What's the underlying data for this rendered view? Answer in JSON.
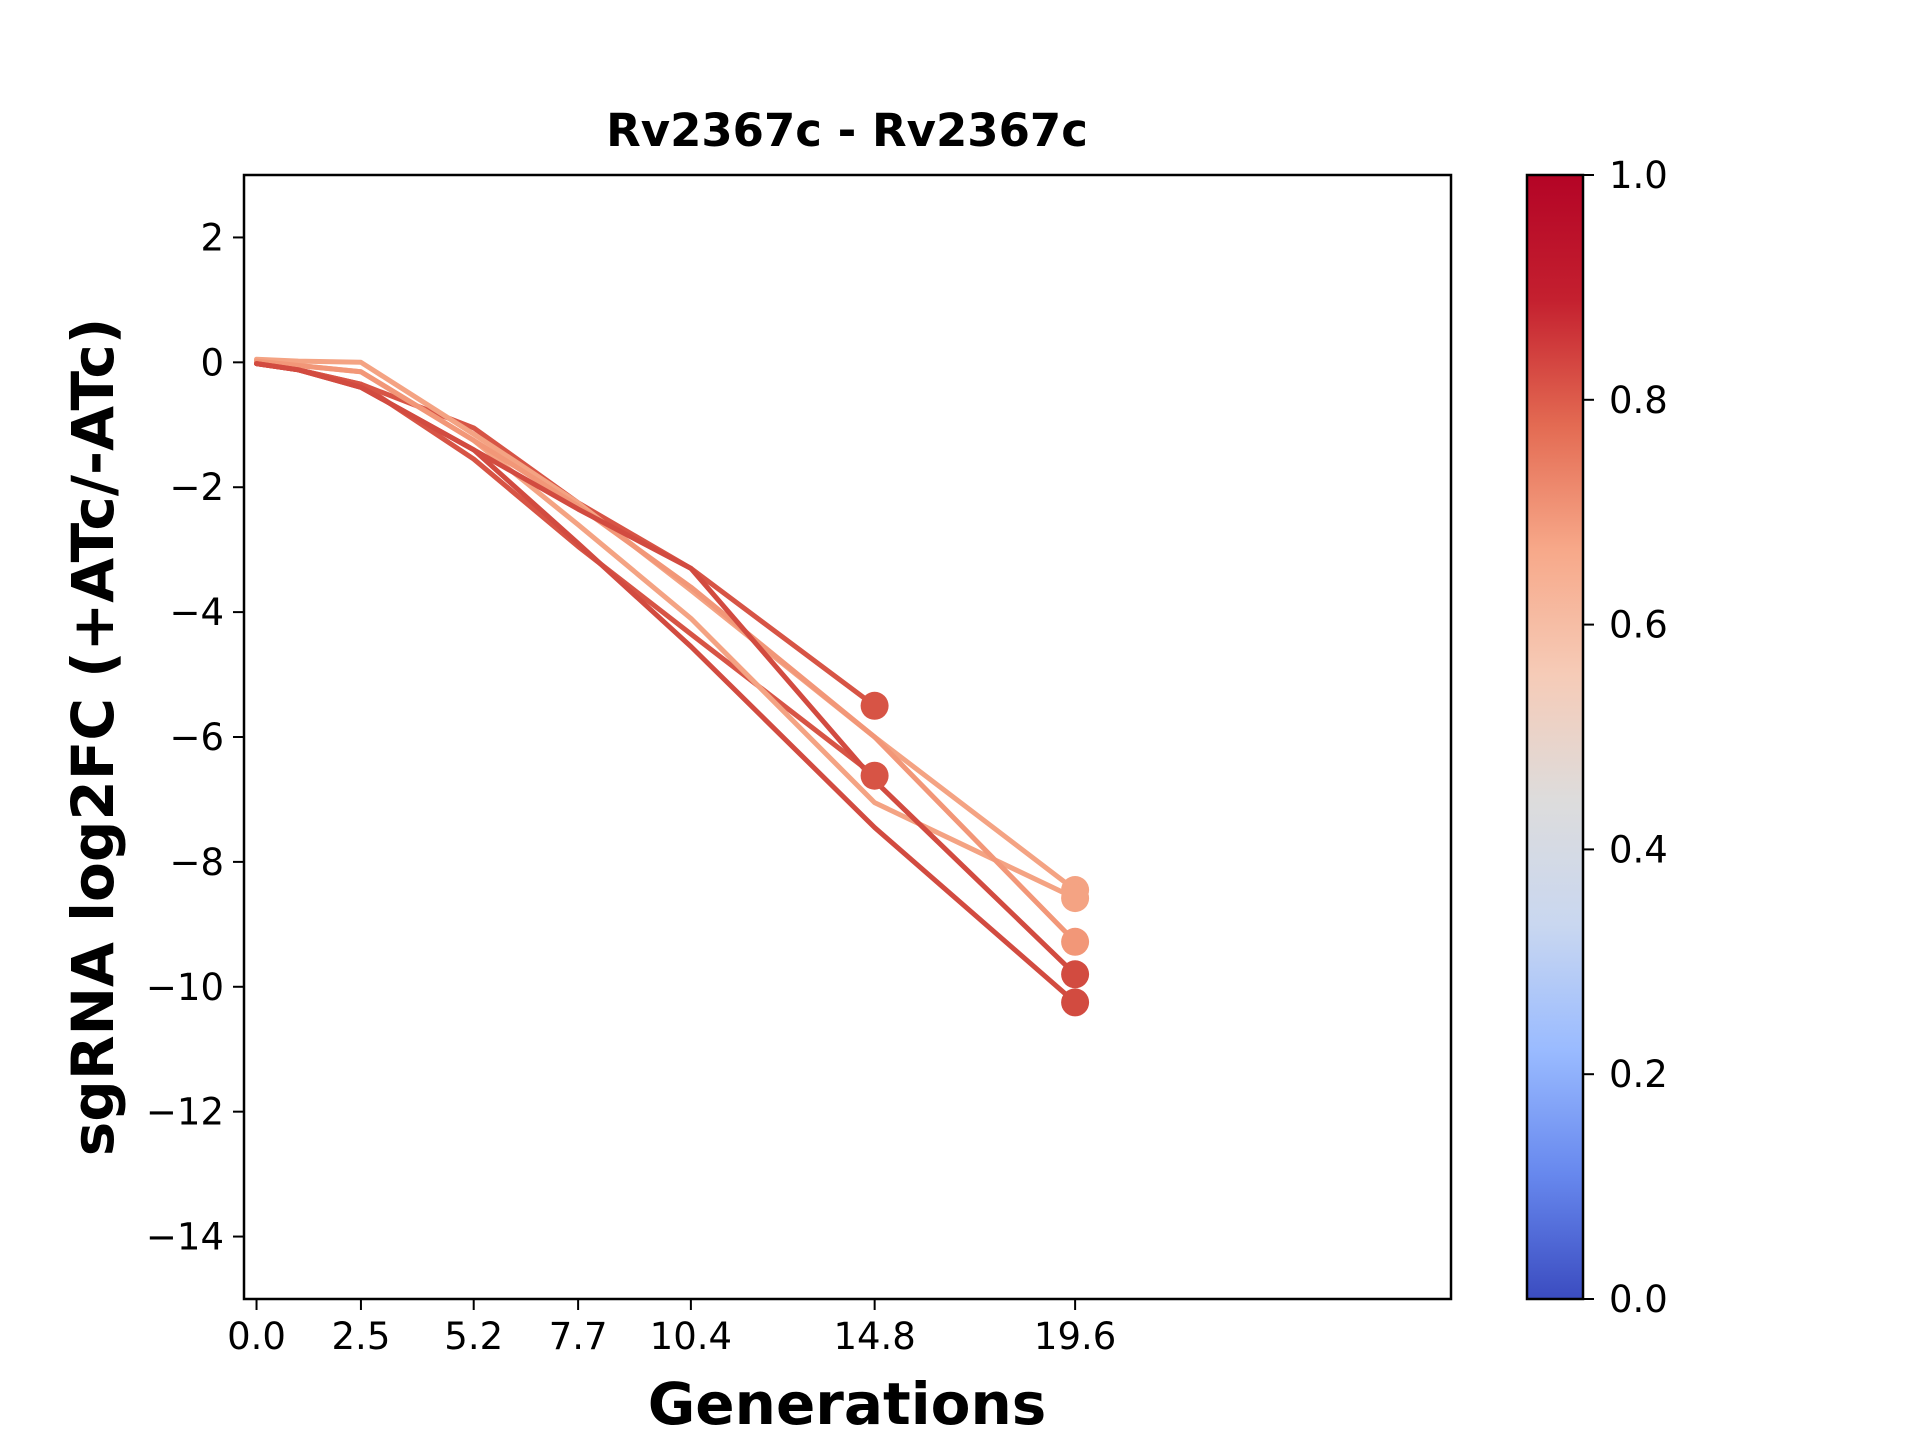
{
  "chart_data": {
    "type": "line",
    "title": "Rv2367c - Rv2367c",
    "xlabel": "Generations",
    "ylabel": "sgRNA log2FC (+ATc/-ATc)",
    "xlim": [
      -0.3,
      28.6
    ],
    "ylim": [
      -15,
      3
    ],
    "x_ticks": [
      0.0,
      2.5,
      5.2,
      7.7,
      10.4,
      14.8,
      19.6
    ],
    "x_tick_labels": [
      "0.0",
      "2.5",
      "5.2",
      "7.7",
      "10.4",
      "14.8",
      "19.6"
    ],
    "y_ticks": [
      2,
      0,
      -2,
      -4,
      -6,
      -8,
      -10,
      -12,
      -14
    ],
    "y_tick_labels": [
      "2",
      "0",
      "−2",
      "−4",
      "−6",
      "−8",
      "−10",
      "−12",
      "−14"
    ],
    "colorbar": {
      "colormap": "coolwarm",
      "range": [
        0.0,
        1.0
      ],
      "ticks": [
        0.0,
        0.2,
        0.4,
        0.6,
        0.8,
        1.0
      ],
      "tick_labels": [
        "0.0",
        "0.2",
        "0.4",
        "0.6",
        "0.8",
        "1.0"
      ],
      "stops": [
        "#3b4cc0",
        "#6788ee",
        "#9abbff",
        "#c9d7f0",
        "#dddcdc",
        "#f6cbb7",
        "#f7a889",
        "#e36a52",
        "#c4202f",
        "#b40426"
      ]
    },
    "grid": false,
    "legend": "none",
    "series": [
      {
        "x": [
          0.0,
          1.0,
          2.5,
          5.2,
          7.7,
          10.4,
          14.8
        ],
        "y": [
          -0.02,
          -0.12,
          -0.35,
          -1.05,
          -2.25,
          -3.3,
          -5.5
        ],
        "color_value": 0.87,
        "color": "#d75445"
      },
      {
        "x": [
          0.0,
          1.0,
          2.5,
          5.2,
          7.7,
          10.4,
          14.8
        ],
        "y": [
          -0.02,
          -0.12,
          -0.35,
          -1.55,
          -2.95,
          -4.35,
          -6.62
        ],
        "color_value": 0.87,
        "color": "#d75445"
      },
      {
        "x": [
          0.0,
          1.0,
          2.5,
          5.2,
          7.7,
          10.4,
          14.8,
          19.6
        ],
        "y": [
          0.05,
          0.02,
          0.0,
          -1.15,
          -2.25,
          -3.65,
          -6.0,
          -8.45
        ],
        "color_value": 0.73,
        "color": "#f4a383"
      },
      {
        "x": [
          0.0,
          1.0,
          2.5,
          5.2,
          7.7,
          10.4,
          14.8,
          19.6
        ],
        "y": [
          0.02,
          -0.05,
          -0.15,
          -1.25,
          -2.6,
          -4.1,
          -7.05,
          -8.58
        ],
        "color_value": 0.73,
        "color": "#f4a383"
      },
      {
        "x": [
          0.0,
          1.0,
          2.5,
          5.2,
          7.7,
          10.4,
          14.8,
          19.6
        ],
        "y": [
          0.02,
          -0.05,
          -0.15,
          -1.25,
          -2.3,
          -3.6,
          -6.0,
          -9.28
        ],
        "color_value": 0.75,
        "color": "#f29778"
      },
      {
        "x": [
          0.0,
          1.0,
          2.5,
          5.2,
          7.7,
          10.4,
          14.8,
          19.6
        ],
        "y": [
          -0.02,
          -0.12,
          -0.4,
          -1.4,
          -2.35,
          -3.3,
          -6.7,
          -9.8
        ],
        "color_value": 0.89,
        "color": "#d24b40"
      },
      {
        "x": [
          0.0,
          1.0,
          2.5,
          5.2,
          7.7,
          10.4,
          14.8,
          19.6
        ],
        "y": [
          -0.02,
          -0.12,
          -0.4,
          -1.4,
          -2.9,
          -4.55,
          -7.45,
          -10.25
        ],
        "color_value": 0.89,
        "color": "#d24b40"
      }
    ]
  }
}
